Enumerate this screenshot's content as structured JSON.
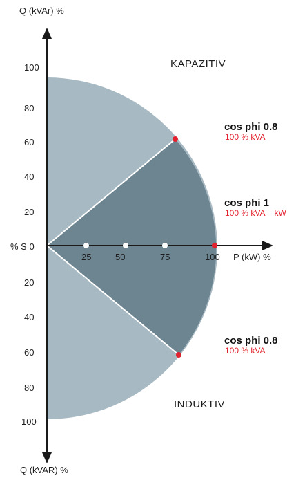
{
  "axes": {
    "q_top_label": "Q (kVAr) %",
    "q_bottom_label": "Q (kVAR) %",
    "p_label": "P (kW) %",
    "origin_label": "% S 0"
  },
  "q_upper_ticks": [
    "100",
    "80",
    "60",
    "40",
    "20"
  ],
  "q_lower_ticks": [
    "20",
    "40",
    "60",
    "80",
    "100"
  ],
  "p_ticks": [
    "25",
    "50",
    "75",
    "100"
  ],
  "regions": {
    "upper": "KAPAZITIV",
    "lower": "INDUKTIV"
  },
  "annotations": {
    "capacitive": {
      "title": "cos phi 0.8",
      "subtitle": "100 % kVA"
    },
    "unity": {
      "title": "cos phi 1",
      "subtitle": "100 % kVA = kW"
    },
    "inductive": {
      "title": "cos phi 0.8",
      "subtitle": "100 % kVA"
    }
  },
  "colors": {
    "light_region": "#a7b9c2",
    "dark_region": "#6d8591",
    "axis": "#1a1a1a",
    "accent_red": "#e3212f",
    "marker_white": "#ffffff"
  }
}
